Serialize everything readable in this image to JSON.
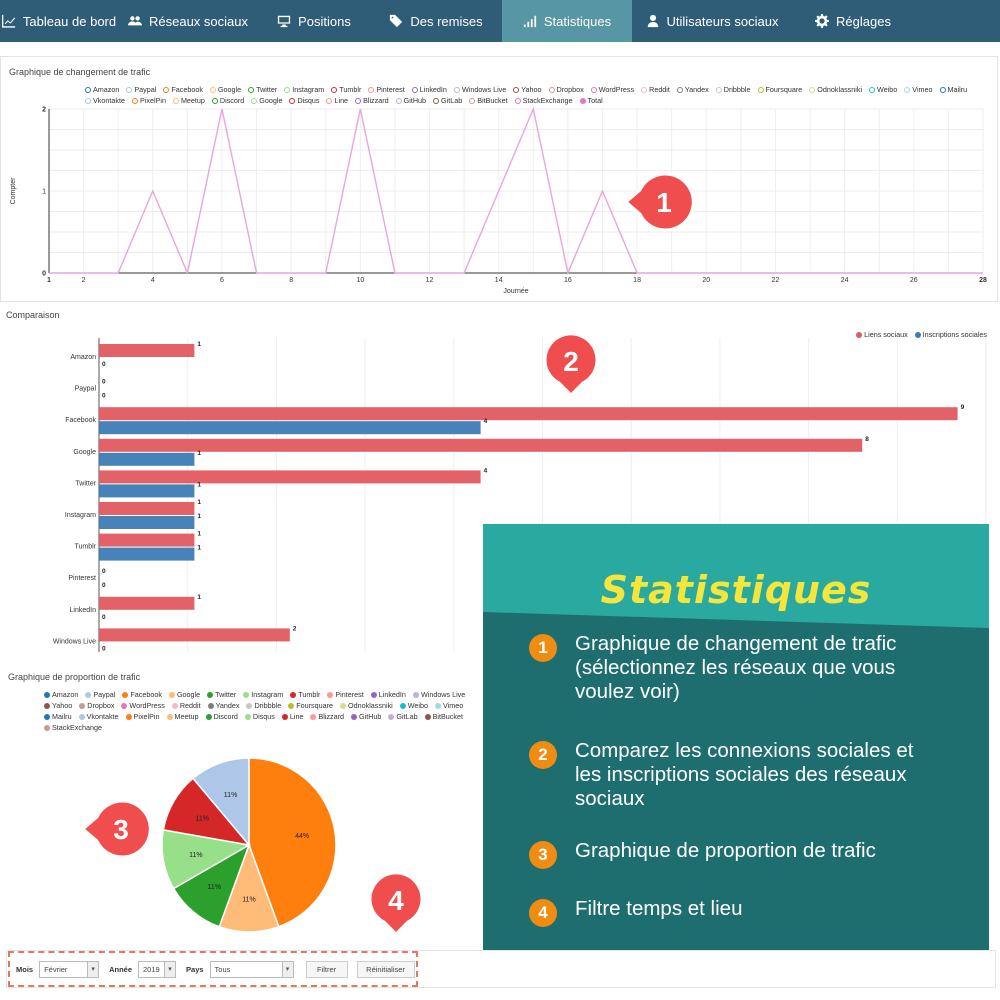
{
  "nav": {
    "items": [
      {
        "label": "Tableau de bord",
        "icon": "chart-line-icon",
        "width": 118,
        "active": false
      },
      {
        "label": "Réseaux sociaux",
        "icon": "users-icon",
        "width": 140,
        "active": false
      },
      {
        "label": "Positions",
        "icon": "monitor-icon",
        "width": 112,
        "active": false
      },
      {
        "label": "Des remises",
        "icon": "tag-icon",
        "width": 132,
        "active": false
      },
      {
        "label": "Statistiques",
        "icon": "bar-chart-icon",
        "width": 130,
        "active": true
      },
      {
        "label": "Utilisateurs sociaux",
        "icon": "user-icon",
        "width": 160,
        "active": false
      },
      {
        "label": "Réglages",
        "icon": "gear-icon",
        "width": 122,
        "active": false
      }
    ]
  },
  "traffic": {
    "title": "Graphique de changement de trafic",
    "legend": [
      "Amazon",
      "Paypal",
      "Facebook",
      "Google",
      "Twitter",
      "Instagram",
      "Tumblr",
      "Pinterest",
      "LinkedIn",
      "Windows Live",
      "Yahoo",
      "Dropbox",
      "WordPress",
      "Reddit",
      "Yandex",
      "Dribbble",
      "Foursquare",
      "Odnoklassniki",
      "Weibo",
      "Vimeo",
      "Mailru",
      "Vkontakte",
      "PixelPin",
      "Meetup",
      "Discord",
      "Google",
      "Disqus",
      "Line",
      "Blizzard",
      "GitHub",
      "GitLab",
      "BitBucket",
      "StackExchange",
      "Total"
    ],
    "legend_colors": [
      "#1f77b4",
      "#aec7e8",
      "#ff7f0e",
      "#ffbb78",
      "#2ca02c",
      "#98df8a",
      "#d62728",
      "#ff9896",
      "#9467bd",
      "#c5b0d5",
      "#8c564b",
      "#c49c94",
      "#e377c2",
      "#f7b6d2",
      "#7f7f7f",
      "#c7c7c7",
      "#bcbd22",
      "#dbdb8d",
      "#17becf",
      "#9edae5",
      "#1f77b4",
      "#aec7e8",
      "#ff7f0e",
      "#ffbb78",
      "#2ca02c",
      "#98df8a",
      "#d62728",
      "#ff9896",
      "#9467bd",
      "#c5b0d5",
      "#8c564b",
      "#c49c94",
      "#e377c2",
      "#e377c2"
    ],
    "total_filled_index": 33
  },
  "comparison": {
    "title": "Comparaison",
    "legend": [
      {
        "label": "Liens sociaux",
        "color": "#e05a5f"
      },
      {
        "label": "Inscriptions sociales",
        "color": "#3d7bb5"
      }
    ]
  },
  "proportion": {
    "title": "Graphique de proportion de trafic",
    "legend": [
      "Amazon",
      "Paypal",
      "Facebook",
      "Google",
      "Twitter",
      "Instagram",
      "Tumblr",
      "Pinterest",
      "LinkedIn",
      "Windows Live",
      "Yahoo",
      "Dropbox",
      "WordPress",
      "Reddit",
      "Yandex",
      "Dribbble",
      "Foursquare",
      "Odnoklassniki",
      "Weibo",
      "Vimeo",
      "Mailru",
      "Vkontakte",
      "PixelPin",
      "Meetup",
      "Discord",
      "Disqus",
      "Line",
      "Blizzard",
      "GitHub",
      "GitLab",
      "BitBucket",
      "StackExchange"
    ],
    "legend_colors": [
      "#1f77b4",
      "#aec7e8",
      "#ff7f0e",
      "#ffbb78",
      "#2ca02c",
      "#98df8a",
      "#d62728",
      "#ff9896",
      "#9467bd",
      "#c5b0d5",
      "#8c564b",
      "#c49c94",
      "#e377c2",
      "#f7b6d2",
      "#7f7f7f",
      "#c7c7c7",
      "#bcbd22",
      "#dbdb8d",
      "#17becf",
      "#9edae5",
      "#1f77b4",
      "#aec7e8",
      "#ff7f0e",
      "#ffbb78",
      "#2ca02c",
      "#98df8a",
      "#d62728",
      "#ff9896",
      "#9467bd",
      "#c5b0d5",
      "#8c564b",
      "#c49c94"
    ]
  },
  "chart_data": [
    {
      "type": "line",
      "title": "Graphique de changement de trafic",
      "xlabel": "Journée",
      "ylabel": "Compter",
      "xlim": [
        1,
        28
      ],
      "ylim": [
        0,
        2
      ],
      "x_ticks": [
        1,
        2,
        4,
        6,
        8,
        10,
        12,
        14,
        16,
        18,
        20,
        22,
        24,
        26,
        28
      ],
      "y_ticks": [
        0,
        1,
        2
      ],
      "series": [
        {
          "name": "Total",
          "color": "#e7a6dc",
          "x": [
            1,
            2,
            3,
            4,
            5,
            6,
            7,
            8,
            9,
            10,
            11,
            12,
            13,
            14,
            15,
            16,
            17,
            18,
            19,
            20,
            21,
            22,
            23,
            24,
            25,
            26,
            27,
            28
          ],
          "values": [
            0,
            0,
            0,
            1,
            0,
            2,
            0,
            0,
            0,
            2,
            0,
            0,
            0,
            1,
            2,
            0,
            1,
            0,
            0,
            0,
            0,
            0,
            0,
            0,
            0,
            0,
            0,
            0
          ]
        }
      ]
    },
    {
      "type": "bar",
      "orientation": "horizontal",
      "title": "Comparaison",
      "categories": [
        "Amazon",
        "Paypal",
        "Facebook",
        "Google",
        "Twitter",
        "Instagram",
        "Tumblr",
        "Pinterest",
        "LinkedIn",
        "Windows Live"
      ],
      "xlim": [
        0,
        9
      ],
      "series": [
        {
          "name": "Liens sociaux",
          "color": "#e05a5f",
          "values": [
            1,
            0,
            9,
            8,
            4,
            1,
            1,
            0,
            1,
            2
          ]
        },
        {
          "name": "Inscriptions sociales",
          "color": "#3d7bb5",
          "values": [
            0,
            0,
            4,
            1,
            1,
            1,
            1,
            0,
            0,
            0
          ]
        }
      ]
    },
    {
      "type": "pie",
      "title": "Graphique de proportion de trafic",
      "slices": [
        {
          "label": "Facebook",
          "value": 44,
          "display": "44%",
          "color": "#ff7f0e"
        },
        {
          "label": "Google",
          "value": 11,
          "display": "11%",
          "color": "#ffbb78"
        },
        {
          "label": "Twitter",
          "value": 11,
          "display": "11%",
          "color": "#2ca02c"
        },
        {
          "label": "Instagram",
          "value": 11,
          "display": "11%",
          "color": "#98df8a"
        },
        {
          "label": "Tumblr",
          "value": 11,
          "display": "11%",
          "color": "#d62728"
        },
        {
          "label": "Paypal",
          "value": 11,
          "display": "11%",
          "color": "#aec7e8"
        }
      ]
    }
  ],
  "callouts": {
    "color": "#f04e4e",
    "labels": [
      "1",
      "2",
      "3",
      "4"
    ]
  },
  "info": {
    "title": "Statistiques",
    "items": [
      {
        "num": "1",
        "text_lines": [
          "Graphique de changement de trafic",
          "(sélectionnez les réseaux que vous",
          "voulez voir)"
        ]
      },
      {
        "num": "2",
        "text_lines": [
          "Comparez les connexions sociales et",
          "les inscriptions sociales des réseaux",
          "sociaux"
        ]
      },
      {
        "num": "3",
        "text_lines": [
          "Graphique de proportion de trafic"
        ]
      },
      {
        "num": "4",
        "text_lines": [
          "Filtre temps et lieu"
        ]
      }
    ]
  },
  "filter": {
    "month_label": "Mois",
    "month_value": "Février",
    "year_label": "Année",
    "year_value": "2019",
    "country_label": "Pays",
    "country_value": "Tous",
    "filter_button": "Filtrer",
    "reset_button": "Réinitialiser"
  }
}
